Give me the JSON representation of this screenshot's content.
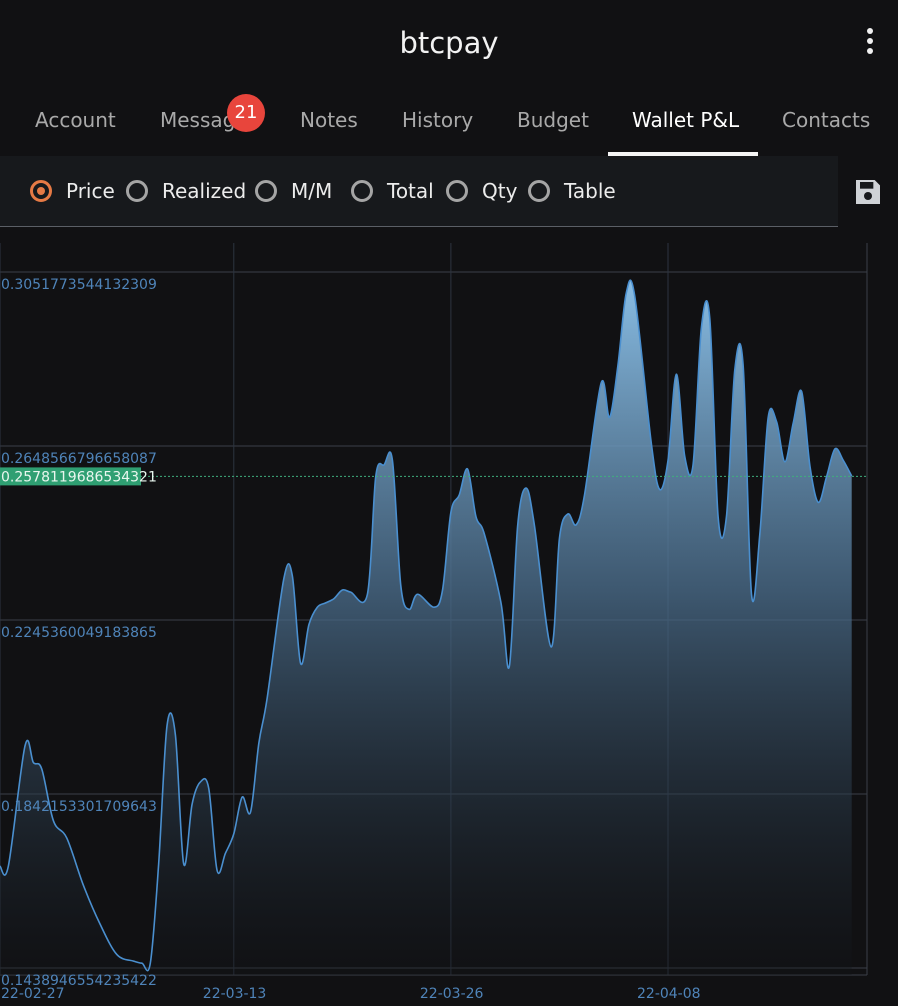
{
  "app": {
    "title": "btcpay"
  },
  "tabs": [
    {
      "label": "Account"
    },
    {
      "label": "Messag",
      "badge": "21"
    },
    {
      "label": "Notes"
    },
    {
      "label": "History"
    },
    {
      "label": "Budget"
    },
    {
      "label": "Wallet P&L",
      "active": true
    },
    {
      "label": "Contacts"
    }
  ],
  "options": [
    {
      "label": "Price",
      "selected": true
    },
    {
      "label": "Realized",
      "selected": false
    },
    {
      "label": "M/M",
      "selected": false
    },
    {
      "label": "Total",
      "selected": false
    },
    {
      "label": "Qty",
      "selected": false
    },
    {
      "label": "Table",
      "selected": false
    }
  ],
  "icons": {
    "menu": "more-vertical-icon",
    "save": "save-icon"
  },
  "colors": {
    "accent": "#e67a45",
    "line": "#4a8fcf",
    "current_bg": "#2f9f72",
    "badge": "#e8453c"
  },
  "chart_data": {
    "type": "area",
    "y_ticks": [
      "0.3051773544132309",
      "0.2648566796658087",
      "0.2245360049183865",
      "0.1842153301709643",
      "0.1438946554235422"
    ],
    "y_tick_values": [
      0.3051773544132309,
      0.2648566796658087,
      0.2245360049183865,
      0.1842153301709643,
      0.1438946554235422
    ],
    "current_value_label": "0.2578119686534321",
    "current_value": 0.2578119686534321,
    "x_ticks": [
      "22-02-27",
      "22-03-13",
      "22-03-26",
      "22-04-08"
    ],
    "x_tick_days": [
      0,
      14,
      27,
      40
    ],
    "ylim": [
      0.1438946554235422,
      0.3051773544132309
    ],
    "series": [
      {
        "x": [
          0,
          0.5,
          1.5,
          2,
          2.5,
          3.2,
          4,
          5,
          6,
          7,
          8,
          8.5,
          9,
          9.5,
          10,
          10.5,
          11,
          11.5,
          12,
          12.5,
          13,
          13.5,
          14,
          14.5,
          15,
          15.5,
          16,
          17,
          17.5,
          18,
          18.5,
          19,
          19.5,
          20,
          20.5,
          21,
          22,
          22.5,
          23,
          23.5,
          24,
          24.5,
          25,
          26,
          26.5,
          27,
          27.5,
          28,
          28.5,
          29,
          30,
          30.5,
          31,
          31.5,
          32,
          33,
          33.5,
          34,
          34.5,
          35,
          36,
          36.5,
          37,
          37.5,
          38,
          39,
          39.5,
          40,
          40.5,
          41,
          41.5,
          42,
          42.5,
          43,
          43.5,
          44,
          44.5,
          45,
          45.5,
          46,
          46.5,
          47,
          47.5,
          48,
          48.5,
          49,
          49.5,
          50,
          50.5,
          51
        ],
        "y": [
          0.1675,
          0.1675,
          0.1954,
          0.1915,
          0.19,
          0.178,
          0.174,
          0.163,
          0.154,
          0.147,
          0.1455,
          0.145,
          0.145,
          0.168,
          0.2,
          0.198,
          0.168,
          0.1818,
          0.187,
          0.1855,
          0.1665,
          0.1705,
          0.175,
          0.1835,
          0.18,
          0.196,
          0.2065,
          0.2342,
          0.2349,
          0.2145,
          0.2235,
          0.2275,
          0.2285,
          0.2295,
          0.2315,
          0.231,
          0.2305,
          0.2578,
          0.2605,
          0.2615,
          0.2325,
          0.227,
          0.2305,
          0.2275,
          0.2315,
          0.2495,
          0.2535,
          0.2595,
          0.2485,
          0.2445,
          0.2285,
          0.2138,
          0.2465,
          0.2551,
          0.2465,
          0.2183,
          0.2435,
          0.2491,
          0.2466,
          0.2535,
          0.2795,
          0.2715,
          0.2835,
          0.3003,
          0.2998,
          0.2655,
          0.2548,
          0.2615,
          0.2815,
          0.2625,
          0.2605,
          0.2923,
          0.2945,
          0.2485,
          0.2485,
          0.2825,
          0.2835,
          0.2305,
          0.2445,
          0.2715,
          0.2705,
          0.2612,
          0.2702,
          0.2775,
          0.2602,
          0.2518,
          0.2578,
          0.2642,
          0.2615,
          0.2579
        ]
      }
    ],
    "grid": true
  }
}
